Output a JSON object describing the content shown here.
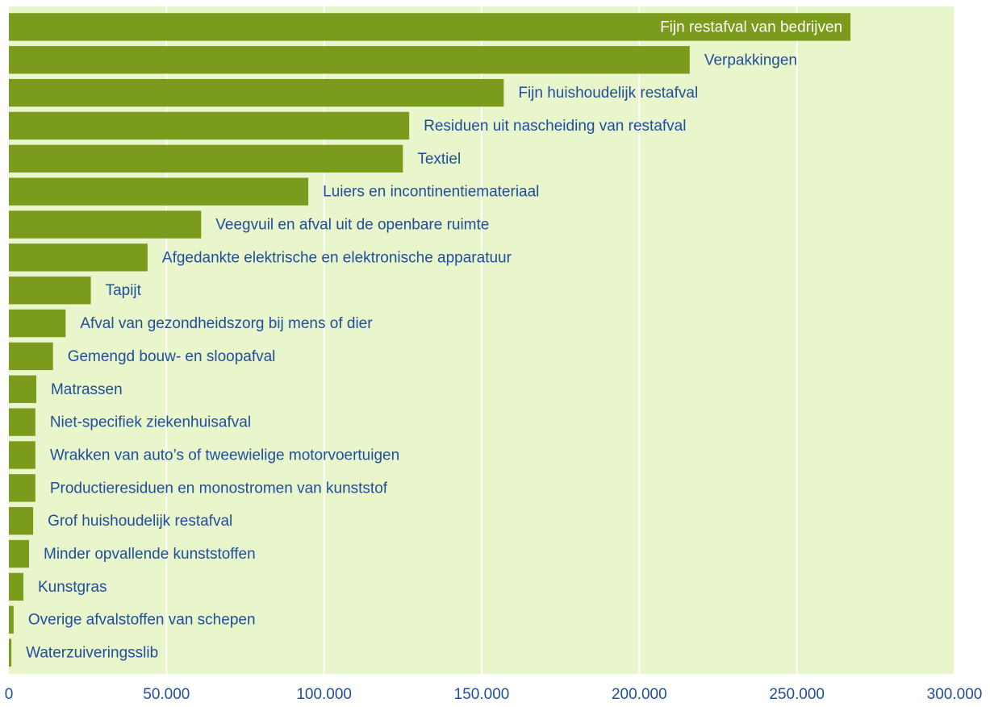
{
  "chart_data": {
    "type": "hbar",
    "categories": [
      "Fijn restafval van bedrijven",
      "Verpakkingen",
      "Fijn huishoudelijk restafval",
      "Residuen uit nascheiding van restafval",
      "Textiel",
      "Luiers en incontinentiemateriaal",
      "Veegvuil en afval uit de openbare ruimte",
      "Afgedankte elektrische en elektronische apparatuur",
      "Tapijt",
      "Afval van gezondheidszorg bij mens of dier",
      "Gemengd bouw- en sloopafval",
      "Matrassen",
      "Niet-specifiek ziekenhuisafval",
      "Wrakken van auto’s of tweewielige motorvoertuigen",
      "Productieresiduen en monostromen van kunststof",
      "Grof huishoudelijk restafval",
      "Minder opvallende kunststoffen",
      "Kunstgras",
      "Overige afvalstoffen van schepen",
      "Waterzuiveringsslib"
    ],
    "values": [
      267000,
      216000,
      157000,
      127000,
      125000,
      95000,
      61000,
      44000,
      26000,
      18000,
      14000,
      8700,
      8400,
      8400,
      8400,
      7700,
      6400,
      4600,
      1500,
      800
    ],
    "color": "#7b9b1c",
    "xlim": [
      0,
      300000
    ],
    "xticks": [
      0,
      {
        "value": 50000,
        "label": "50.000"
      },
      {
        "value": 100000,
        "label": "100.000"
      },
      {
        "value": 150000,
        "label": "150.000"
      },
      {
        "value": 200000,
        "label": "200.000"
      },
      {
        "value": 250000,
        "label": "250.000"
      },
      {
        "value": 300000,
        "label": "300.000"
      }
    ],
    "grid": true
  }
}
